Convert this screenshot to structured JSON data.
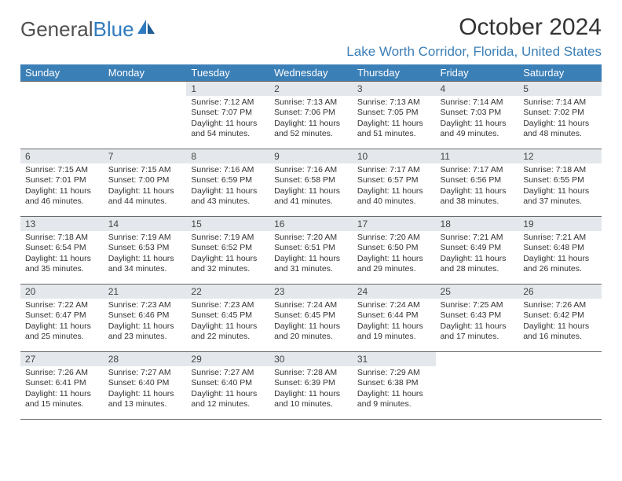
{
  "logo": {
    "text_a": "General",
    "text_b": "Blue"
  },
  "title": "October 2024",
  "location": "Lake Worth Corridor, Florida, United States",
  "colors": {
    "header_bg": "#3b7fb7",
    "header_text": "#ffffff",
    "daynum_bg": "#e4e8ec",
    "border": "#6a6a6a",
    "location": "#3b7fb7",
    "logo_blue": "#2f7bbf"
  },
  "weekdays": [
    "Sunday",
    "Monday",
    "Tuesday",
    "Wednesday",
    "Thursday",
    "Friday",
    "Saturday"
  ],
  "weeks": [
    [
      {
        "blank": true
      },
      {
        "blank": true
      },
      {
        "n": "1",
        "sr": "Sunrise: 7:12 AM",
        "ss": "Sunset: 7:07 PM",
        "dl": "Daylight: 11 hours and 54 minutes."
      },
      {
        "n": "2",
        "sr": "Sunrise: 7:13 AM",
        "ss": "Sunset: 7:06 PM",
        "dl": "Daylight: 11 hours and 52 minutes."
      },
      {
        "n": "3",
        "sr": "Sunrise: 7:13 AM",
        "ss": "Sunset: 7:05 PM",
        "dl": "Daylight: 11 hours and 51 minutes."
      },
      {
        "n": "4",
        "sr": "Sunrise: 7:14 AM",
        "ss": "Sunset: 7:03 PM",
        "dl": "Daylight: 11 hours and 49 minutes."
      },
      {
        "n": "5",
        "sr": "Sunrise: 7:14 AM",
        "ss": "Sunset: 7:02 PM",
        "dl": "Daylight: 11 hours and 48 minutes."
      }
    ],
    [
      {
        "n": "6",
        "sr": "Sunrise: 7:15 AM",
        "ss": "Sunset: 7:01 PM",
        "dl": "Daylight: 11 hours and 46 minutes."
      },
      {
        "n": "7",
        "sr": "Sunrise: 7:15 AM",
        "ss": "Sunset: 7:00 PM",
        "dl": "Daylight: 11 hours and 44 minutes."
      },
      {
        "n": "8",
        "sr": "Sunrise: 7:16 AM",
        "ss": "Sunset: 6:59 PM",
        "dl": "Daylight: 11 hours and 43 minutes."
      },
      {
        "n": "9",
        "sr": "Sunrise: 7:16 AM",
        "ss": "Sunset: 6:58 PM",
        "dl": "Daylight: 11 hours and 41 minutes."
      },
      {
        "n": "10",
        "sr": "Sunrise: 7:17 AM",
        "ss": "Sunset: 6:57 PM",
        "dl": "Daylight: 11 hours and 40 minutes."
      },
      {
        "n": "11",
        "sr": "Sunrise: 7:17 AM",
        "ss": "Sunset: 6:56 PM",
        "dl": "Daylight: 11 hours and 38 minutes."
      },
      {
        "n": "12",
        "sr": "Sunrise: 7:18 AM",
        "ss": "Sunset: 6:55 PM",
        "dl": "Daylight: 11 hours and 37 minutes."
      }
    ],
    [
      {
        "n": "13",
        "sr": "Sunrise: 7:18 AM",
        "ss": "Sunset: 6:54 PM",
        "dl": "Daylight: 11 hours and 35 minutes."
      },
      {
        "n": "14",
        "sr": "Sunrise: 7:19 AM",
        "ss": "Sunset: 6:53 PM",
        "dl": "Daylight: 11 hours and 34 minutes."
      },
      {
        "n": "15",
        "sr": "Sunrise: 7:19 AM",
        "ss": "Sunset: 6:52 PM",
        "dl": "Daylight: 11 hours and 32 minutes."
      },
      {
        "n": "16",
        "sr": "Sunrise: 7:20 AM",
        "ss": "Sunset: 6:51 PM",
        "dl": "Daylight: 11 hours and 31 minutes."
      },
      {
        "n": "17",
        "sr": "Sunrise: 7:20 AM",
        "ss": "Sunset: 6:50 PM",
        "dl": "Daylight: 11 hours and 29 minutes."
      },
      {
        "n": "18",
        "sr": "Sunrise: 7:21 AM",
        "ss": "Sunset: 6:49 PM",
        "dl": "Daylight: 11 hours and 28 minutes."
      },
      {
        "n": "19",
        "sr": "Sunrise: 7:21 AM",
        "ss": "Sunset: 6:48 PM",
        "dl": "Daylight: 11 hours and 26 minutes."
      }
    ],
    [
      {
        "n": "20",
        "sr": "Sunrise: 7:22 AM",
        "ss": "Sunset: 6:47 PM",
        "dl": "Daylight: 11 hours and 25 minutes."
      },
      {
        "n": "21",
        "sr": "Sunrise: 7:23 AM",
        "ss": "Sunset: 6:46 PM",
        "dl": "Daylight: 11 hours and 23 minutes."
      },
      {
        "n": "22",
        "sr": "Sunrise: 7:23 AM",
        "ss": "Sunset: 6:45 PM",
        "dl": "Daylight: 11 hours and 22 minutes."
      },
      {
        "n": "23",
        "sr": "Sunrise: 7:24 AM",
        "ss": "Sunset: 6:45 PM",
        "dl": "Daylight: 11 hours and 20 minutes."
      },
      {
        "n": "24",
        "sr": "Sunrise: 7:24 AM",
        "ss": "Sunset: 6:44 PM",
        "dl": "Daylight: 11 hours and 19 minutes."
      },
      {
        "n": "25",
        "sr": "Sunrise: 7:25 AM",
        "ss": "Sunset: 6:43 PM",
        "dl": "Daylight: 11 hours and 17 minutes."
      },
      {
        "n": "26",
        "sr": "Sunrise: 7:26 AM",
        "ss": "Sunset: 6:42 PM",
        "dl": "Daylight: 11 hours and 16 minutes."
      }
    ],
    [
      {
        "n": "27",
        "sr": "Sunrise: 7:26 AM",
        "ss": "Sunset: 6:41 PM",
        "dl": "Daylight: 11 hours and 15 minutes."
      },
      {
        "n": "28",
        "sr": "Sunrise: 7:27 AM",
        "ss": "Sunset: 6:40 PM",
        "dl": "Daylight: 11 hours and 13 minutes."
      },
      {
        "n": "29",
        "sr": "Sunrise: 7:27 AM",
        "ss": "Sunset: 6:40 PM",
        "dl": "Daylight: 11 hours and 12 minutes."
      },
      {
        "n": "30",
        "sr": "Sunrise: 7:28 AM",
        "ss": "Sunset: 6:39 PM",
        "dl": "Daylight: 11 hours and 10 minutes."
      },
      {
        "n": "31",
        "sr": "Sunrise: 7:29 AM",
        "ss": "Sunset: 6:38 PM",
        "dl": "Daylight: 11 hours and 9 minutes."
      },
      {
        "blank": true
      },
      {
        "blank": true
      }
    ]
  ]
}
